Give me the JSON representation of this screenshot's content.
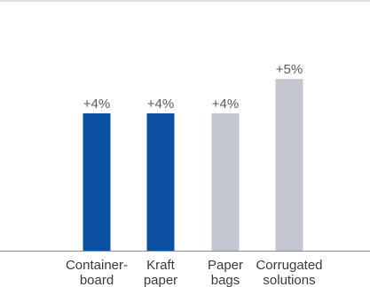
{
  "chart_data": {
    "type": "bar",
    "categories": [
      [
        "Container-",
        "board"
      ],
      [
        "Kraft",
        "paper"
      ],
      [
        "Paper",
        "bags"
      ],
      [
        "Corrugated",
        "solutions"
      ]
    ],
    "values": [
      4,
      4,
      4,
      5
    ],
    "data_labels": [
      "+4%",
      "+4%",
      "+4%",
      "+5%"
    ],
    "bar_colors": [
      "#0a4fa0",
      "#0a4fa0",
      "#c4c7d2",
      "#c4c7d2"
    ],
    "title": "",
    "xlabel": "",
    "ylabel": "",
    "ylim": [
      0,
      7.3
    ],
    "grid": false,
    "legend": "none"
  }
}
